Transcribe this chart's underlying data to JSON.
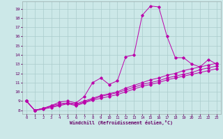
{
  "xlabel": "Windchill (Refroidissement éolien,°C)",
  "bg_color": "#cce8e8",
  "line_color": "#bb00aa",
  "grid_color": "#aacccc",
  "x_ticks": [
    0,
    1,
    2,
    3,
    4,
    5,
    6,
    7,
    8,
    9,
    10,
    11,
    12,
    13,
    14,
    15,
    16,
    17,
    18,
    19,
    20,
    21,
    22,
    23
  ],
  "y_ticks": [
    8,
    9,
    10,
    11,
    12,
    13,
    14,
    15,
    16,
    17,
    18,
    19
  ],
  "ylim": [
    7.6,
    19.8
  ],
  "xlim": [
    -0.5,
    23.5
  ],
  "line1_y": [
    9.0,
    8.0,
    8.2,
    8.5,
    8.9,
    9.0,
    8.8,
    9.5,
    11.0,
    11.5,
    10.8,
    11.2,
    13.8,
    14.0,
    18.3,
    19.3,
    19.2,
    16.0,
    13.7,
    13.7,
    13.0,
    12.7,
    13.5,
    13.0
  ],
  "line2_y": [
    9.0,
    8.0,
    8.2,
    8.5,
    8.7,
    8.8,
    8.7,
    9.0,
    9.3,
    9.6,
    9.8,
    10.0,
    10.4,
    10.7,
    11.0,
    11.3,
    11.5,
    11.8,
    12.0,
    12.3,
    12.5,
    12.7,
    12.9,
    13.1
  ],
  "line3_y": [
    9.0,
    8.0,
    8.2,
    8.4,
    8.6,
    8.8,
    8.6,
    8.9,
    9.2,
    9.5,
    9.7,
    9.9,
    10.2,
    10.5,
    10.8,
    11.0,
    11.2,
    11.5,
    11.7,
    11.9,
    12.1,
    12.4,
    12.6,
    12.8
  ],
  "line4_y": [
    9.0,
    8.0,
    8.1,
    8.3,
    8.5,
    8.7,
    8.5,
    8.8,
    9.1,
    9.3,
    9.5,
    9.7,
    10.0,
    10.3,
    10.6,
    10.8,
    11.0,
    11.3,
    11.5,
    11.7,
    11.9,
    12.1,
    12.3,
    12.5
  ]
}
